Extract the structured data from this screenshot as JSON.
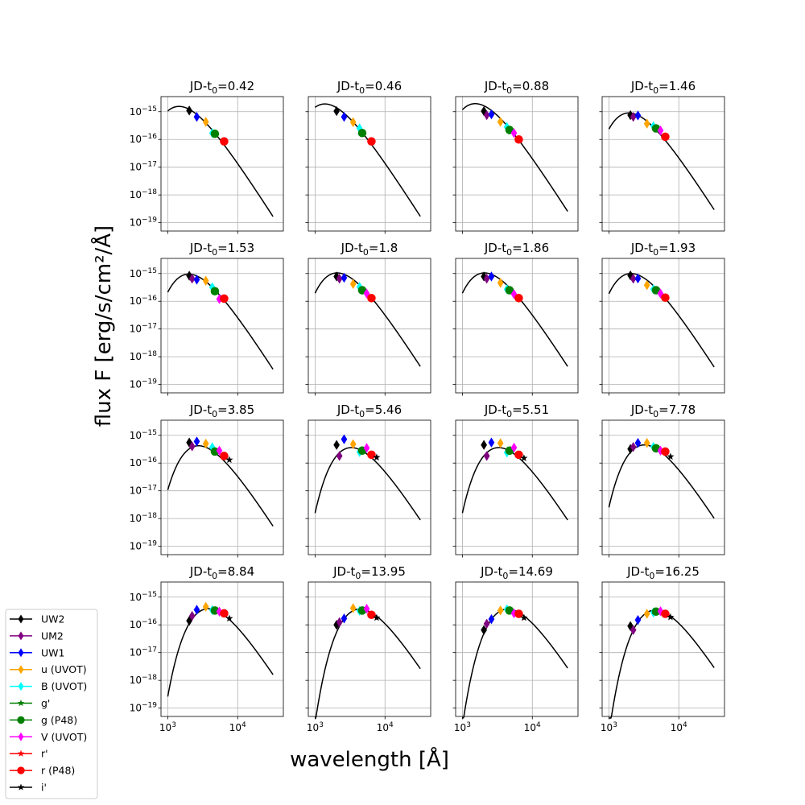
{
  "chart_data": {
    "type": "scatter",
    "layout": "4x4 grid of log-log SED panels with blackbody fits",
    "ylabel": "flux F [erg/s/cm²/Å]",
    "xlabel": "wavelength [Å]",
    "xscale": "log",
    "yscale": "log",
    "xlim": [
      800,
      45000
    ],
    "ylim": [
      5e-20,
      3.5e-15
    ],
    "grid": true,
    "xticks": [
      {
        "value": 1000,
        "base": "10",
        "exp": "3"
      },
      {
        "value": 10000,
        "base": "10",
        "exp": "4"
      }
    ],
    "yticks": [
      {
        "value": 1e-15,
        "base": "10",
        "exp": "−15"
      },
      {
        "value": 1e-16,
        "base": "10",
        "exp": "−16"
      },
      {
        "value": 1e-17,
        "base": "10",
        "exp": "−17"
      },
      {
        "value": 1e-18,
        "base": "10",
        "exp": "−18"
      },
      {
        "value": 1e-19,
        "base": "10",
        "exp": "−19"
      }
    ],
    "legend_position": "bottom-left",
    "legend": [
      {
        "name": "UW2",
        "color": "#000000",
        "marker": "diamond",
        "wl": 2030
      },
      {
        "name": "UM2",
        "color": "#800080",
        "marker": "diamond",
        "wl": 2230
      },
      {
        "name": "UW1",
        "color": "#0000ff",
        "marker": "diamond",
        "wl": 2600
      },
      {
        "name": "u (UVOT)",
        "color": "#ffa500",
        "marker": "diamond",
        "wl": 3500
      },
      {
        "name": "B (UVOT)",
        "color": "#00ffff",
        "marker": "diamond",
        "wl": 4330
      },
      {
        "name": "g'",
        "color": "#008000",
        "marker": "star",
        "wl": 4800
      },
      {
        "name": "g (P48)",
        "color": "#008000",
        "marker": "circle",
        "wl": 4720
      },
      {
        "name": "V (UVOT)",
        "color": "#ff00ff",
        "marker": "diamond",
        "wl": 5470
      },
      {
        "name": "r'",
        "color": "#ff0000",
        "marker": "star",
        "wl": 6250
      },
      {
        "name": "r (P48)",
        "color": "#ff0000",
        "marker": "circle",
        "wl": 6400
      },
      {
        "name": "i'",
        "color": "#000000",
        "marker": "star",
        "wl": 7600
      }
    ],
    "panels": [
      {
        "title_base": "JD-t",
        "title_sub": "0",
        "title_value": "=0.42",
        "fit": {
          "T": 20000,
          "scale": 1.55e-15
        },
        "points": [
          {
            "b": 0,
            "f": 1.1e-15
          },
          {
            "b": 2,
            "f": 6.5e-16
          },
          {
            "b": 3,
            "f": 4.3e-16
          },
          {
            "b": 4,
            "f": 1.7e-16
          },
          {
            "b": 6,
            "f": 1.6e-16
          },
          {
            "b": 9,
            "f": 8.5e-17
          }
        ]
      },
      {
        "title_base": "JD-t",
        "title_sub": "0",
        "title_value": "=0.46",
        "fit": {
          "T": 21000,
          "scale": 1.9e-15
        },
        "points": [
          {
            "b": 0,
            "f": 1.05e-15
          },
          {
            "b": 2,
            "f": 6.5e-16
          },
          {
            "b": 3,
            "f": 4.2e-16
          },
          {
            "b": 4,
            "f": 2.5e-16
          },
          {
            "b": 6,
            "f": 1.7e-16
          },
          {
            "b": 9,
            "f": 8.5e-17
          }
        ]
      },
      {
        "title_base": "JD-t",
        "title_sub": "0",
        "title_value": "=0.88",
        "fit": {
          "T": 19000,
          "scale": 1.95e-15
        },
        "points": [
          {
            "b": 0,
            "f": 1.05e-15
          },
          {
            "b": 1,
            "f": 7.5e-16
          },
          {
            "b": 2,
            "f": 8e-16
          },
          {
            "b": 3,
            "f": 4.3e-16
          },
          {
            "b": 4,
            "f": 2.8e-16
          },
          {
            "b": 6,
            "f": 2.2e-16
          },
          {
            "b": 7,
            "f": 1.7e-16
          },
          {
            "b": 9,
            "f": 1e-16
          }
        ]
      },
      {
        "title_base": "JD-t",
        "title_sub": "0",
        "title_value": "=1.46",
        "fit": {
          "T": 15000,
          "scale": 9e-16
        },
        "points": [
          {
            "b": 0,
            "f": 7.5e-16
          },
          {
            "b": 1,
            "f": 6.5e-16
          },
          {
            "b": 2,
            "f": 7.3e-16
          },
          {
            "b": 3,
            "f": 3.7e-16
          },
          {
            "b": 4,
            "f": 3e-16
          },
          {
            "b": 6,
            "f": 2.5e-16
          },
          {
            "b": 7,
            "f": 2.1e-16
          },
          {
            "b": 9,
            "f": 1.25e-16
          }
        ]
      },
      {
        "title_base": "JD-t",
        "title_sub": "0",
        "title_value": "=1.53",
        "fit": {
          "T": 14500,
          "scale": 9.5e-16
        },
        "points": [
          {
            "b": 0,
            "f": 8.3e-16
          },
          {
            "b": 1,
            "f": 6.5e-16
          },
          {
            "b": 2,
            "f": 6e-16
          },
          {
            "b": 3,
            "f": 5.5e-16
          },
          {
            "b": 4,
            "f": 3.2e-16
          },
          {
            "b": 6,
            "f": 2.3e-16
          },
          {
            "b": 7,
            "f": 1.2e-16
          },
          {
            "b": 9,
            "f": 1.25e-16
          }
        ]
      },
      {
        "title_base": "JD-t",
        "title_sub": "0",
        "title_value": "=1.8",
        "fit": {
          "T": 14000,
          "scale": 1.05e-15
        },
        "points": [
          {
            "b": 0,
            "f": 7.8e-16
          },
          {
            "b": 1,
            "f": 6.5e-16
          },
          {
            "b": 2,
            "f": 7e-16
          },
          {
            "b": 3,
            "f": 4.2e-16
          },
          {
            "b": 4,
            "f": 3.3e-16
          },
          {
            "b": 6,
            "f": 2.5e-16
          },
          {
            "b": 7,
            "f": 1.9e-16
          },
          {
            "b": 9,
            "f": 1.3e-16
          }
        ]
      },
      {
        "title_base": "JD-t",
        "title_sub": "0",
        "title_value": "=1.86",
        "fit": {
          "T": 14000,
          "scale": 1.05e-15
        },
        "points": [
          {
            "b": 0,
            "f": 7.8e-16
          },
          {
            "b": 1,
            "f": 6.5e-16
          },
          {
            "b": 2,
            "f": 7.8e-16
          },
          {
            "b": 3,
            "f": 4.6e-16
          },
          {
            "b": 4,
            "f": 2.7e-16
          },
          {
            "b": 6,
            "f": 2.5e-16
          },
          {
            "b": 7,
            "f": 1.8e-16
          },
          {
            "b": 9,
            "f": 1.3e-16
          }
        ]
      },
      {
        "title_base": "JD-t",
        "title_sub": "0",
        "title_value": "=1.93",
        "fit": {
          "T": 14000,
          "scale": 1e-15
        },
        "points": [
          {
            "b": 0,
            "f": 8.5e-16
          },
          {
            "b": 1,
            "f": 6.5e-16
          },
          {
            "b": 2,
            "f": 6.6e-16
          },
          {
            "b": 3,
            "f": 3.8e-16
          },
          {
            "b": 4,
            "f": 2.7e-16
          },
          {
            "b": 6,
            "f": 2.5e-16
          },
          {
            "b": 7,
            "f": 1.9e-16
          },
          {
            "b": 9,
            "f": 1.35e-16
          }
        ]
      },
      {
        "title_base": "JD-t",
        "title_sub": "0",
        "title_value": "=3.85",
        "fit": {
          "T": 10500,
          "scale": 4.2e-16
        },
        "points": [
          {
            "b": 0,
            "f": 5.5e-16
          },
          {
            "b": 1,
            "f": 4e-16
          },
          {
            "b": 2,
            "f": 6e-16
          },
          {
            "b": 3,
            "f": 5e-16
          },
          {
            "b": 4,
            "f": 3.7e-16
          },
          {
            "b": 6,
            "f": 2.6e-16
          },
          {
            "b": 7,
            "f": 2.8e-16
          },
          {
            "b": 9,
            "f": 1.8e-16
          },
          {
            "b": 10,
            "f": 1.3e-16
          }
        ]
      },
      {
        "title_base": "JD-t",
        "title_sub": "0",
        "title_value": "=5.46",
        "fit": {
          "T": 8800,
          "scale": 3.6e-16
        },
        "points": [
          {
            "b": 0,
            "f": 4.5e-16
          },
          {
            "b": 1,
            "f": 1.8e-16
          },
          {
            "b": 2,
            "f": 7.2e-16
          },
          {
            "b": 3,
            "f": 4.8e-16
          },
          {
            "b": 4,
            "f": 2.5e-16
          },
          {
            "b": 6,
            "f": 2.8e-16
          },
          {
            "b": 7,
            "f": 3.5e-16
          },
          {
            "b": 9,
            "f": 2e-16
          },
          {
            "b": 10,
            "f": 1.6e-16
          }
        ]
      },
      {
        "title_base": "JD-t",
        "title_sub": "0",
        "title_value": "=5.51",
        "fit": {
          "T": 8800,
          "scale": 3.6e-16
        },
        "points": [
          {
            "b": 0,
            "f": 4.5e-16
          },
          {
            "b": 1,
            "f": 1.8e-16
          },
          {
            "b": 2,
            "f": 5.5e-16
          },
          {
            "b": 3,
            "f": 5.2e-16
          },
          {
            "b": 4,
            "f": 2.4e-16
          },
          {
            "b": 6,
            "f": 2.8e-16
          },
          {
            "b": 7,
            "f": 3.6e-16
          },
          {
            "b": 9,
            "f": 2e-16
          },
          {
            "b": 10,
            "f": 1.5e-16
          }
        ]
      },
      {
        "title_base": "JD-t",
        "title_sub": "0",
        "title_value": "=7.78",
        "fit": {
          "T": 9000,
          "scale": 4.5e-16
        },
        "points": [
          {
            "b": 0,
            "f": 3.2e-16
          },
          {
            "b": 1,
            "f": 3.8e-16
          },
          {
            "b": 2,
            "f": 5.3e-16
          },
          {
            "b": 3,
            "f": 5.3e-16
          },
          {
            "b": 4,
            "f": 3.8e-16
          },
          {
            "b": 6,
            "f": 3.4e-16
          },
          {
            "b": 7,
            "f": 2.8e-16
          },
          {
            "b": 9,
            "f": 2.6e-16
          },
          {
            "b": 10,
            "f": 1.7e-16
          }
        ]
      },
      {
        "title_base": "JD-t",
        "title_sub": "0",
        "title_value": "=8.84",
        "fit": {
          "T": 7600,
          "scale": 3.8e-16
        },
        "points": [
          {
            "b": 0,
            "f": 1.4e-16
          },
          {
            "b": 1,
            "f": 2.1e-16
          },
          {
            "b": 2,
            "f": 3.5e-16
          },
          {
            "b": 3,
            "f": 4.5e-16
          },
          {
            "b": 4,
            "f": 3.4e-16
          },
          {
            "b": 6,
            "f": 3.3e-16
          },
          {
            "b": 7,
            "f": 3e-16
          },
          {
            "b": 9,
            "f": 2.6e-16
          },
          {
            "b": 10,
            "f": 1.7e-16
          }
        ]
      },
      {
        "title_base": "JD-t",
        "title_sub": "0",
        "title_value": "=13.95",
        "fit": {
          "T": 6600,
          "scale": 3.7e-16
        },
        "points": [
          {
            "b": 0,
            "f": 1e-16
          },
          {
            "b": 1,
            "f": 1.25e-16
          },
          {
            "b": 2,
            "f": 1.7e-16
          },
          {
            "b": 3,
            "f": 4e-16
          },
          {
            "b": 4,
            "f": 3.2e-16
          },
          {
            "b": 6,
            "f": 3.3e-16
          },
          {
            "b": 7,
            "f": 3.8e-16
          },
          {
            "b": 9,
            "f": 2.3e-16
          },
          {
            "b": 10,
            "f": 1.8e-16
          }
        ]
      },
      {
        "title_base": "JD-t",
        "title_sub": "0",
        "title_value": "=14.69",
        "fit": {
          "T": 6500,
          "scale": 3.7e-16
        },
        "points": [
          {
            "b": 0,
            "f": 6.5e-17
          },
          {
            "b": 1,
            "f": 1.1e-16
          },
          {
            "b": 2,
            "f": 1.6e-16
          },
          {
            "b": 3,
            "f": 3.3e-16
          },
          {
            "b": 4,
            "f": 3.6e-16
          },
          {
            "b": 6,
            "f": 3.3e-16
          },
          {
            "b": 7,
            "f": 2.6e-16
          },
          {
            "b": 9,
            "f": 2.5e-16
          },
          {
            "b": 10,
            "f": 1.8e-16
          }
        ]
      },
      {
        "title_base": "JD-t",
        "title_sub": "0",
        "title_value": "=16.25",
        "fit": {
          "T": 6300,
          "scale": 3.4e-16
        },
        "points": [
          {
            "b": 0,
            "f": 9e-17
          },
          {
            "b": 1,
            "f": 6.5e-17
          },
          {
            "b": 2,
            "f": 1.5e-16
          },
          {
            "b": 3,
            "f": 2.5e-16
          },
          {
            "b": 4,
            "f": 2.8e-16
          },
          {
            "b": 6,
            "f": 3e-16
          },
          {
            "b": 7,
            "f": 3.1e-16
          },
          {
            "b": 9,
            "f": 2.5e-16
          },
          {
            "b": 10,
            "f": 1.9e-16
          }
        ]
      }
    ]
  }
}
